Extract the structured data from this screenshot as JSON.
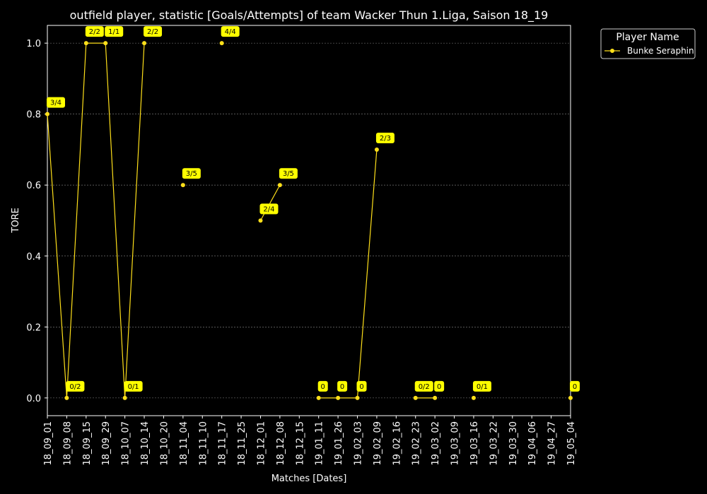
{
  "chart_data": {
    "type": "line",
    "title": "outfield player, statistic [Goals/Attempts] of team Wacker Thun 1.Liga, Saison 18_19",
    "xlabel": "Matches [Dates]",
    "ylabel": "TORE",
    "ylim": [
      -0.05,
      1.05
    ],
    "yticks": [
      0.0,
      0.2,
      0.4,
      0.6,
      0.8,
      1.0
    ],
    "ytick_labels": [
      "0.0",
      "0.2",
      "0.4",
      "0.6",
      "0.8",
      "1.0"
    ],
    "grid": true,
    "legend": {
      "title": "Player Name",
      "placement": "outside-top-right"
    },
    "colors": {
      "background": "#000000",
      "series": "#ffe01a",
      "label_bg": "#ffff00",
      "grid": "#888888"
    },
    "categories": [
      "18_09_01",
      "18_09_08",
      "18_09_15",
      "18_09_29",
      "18_10_07",
      "18_10_14",
      "18_10_20",
      "18_11_04",
      "18_11_10",
      "18_11_17",
      "18_11_25",
      "18_12_01",
      "18_12_08",
      "18_12_15",
      "19_01_11",
      "19_01_26",
      "19_02_03",
      "19_02_09",
      "19_02_16",
      "19_02_23",
      "19_03_02",
      "19_03_09",
      "19_03_16",
      "19_03_22",
      "19_03_30",
      "19_04_06",
      "19_04_27",
      "19_05_04"
    ],
    "series": [
      {
        "name": "Bunke Seraphin",
        "values": [
          0.8,
          0.0,
          1.0,
          1.0,
          0.0,
          1.0,
          null,
          0.6,
          null,
          1.0,
          null,
          0.5,
          0.6,
          null,
          0.0,
          0.0,
          0.0,
          0.7,
          null,
          0.0,
          0.0,
          null,
          0.0,
          null,
          null,
          null,
          null,
          0.0
        ],
        "labels": [
          "3/4",
          "0/2",
          "2/2",
          "1/1",
          "0/1",
          "2/2",
          null,
          "3/5",
          null,
          "4/4",
          null,
          "2/4",
          "3/5",
          null,
          "0",
          "0",
          "0",
          "2/3",
          null,
          "0/2",
          "0",
          null,
          "0/1",
          null,
          null,
          null,
          null,
          "0"
        ]
      }
    ]
  }
}
